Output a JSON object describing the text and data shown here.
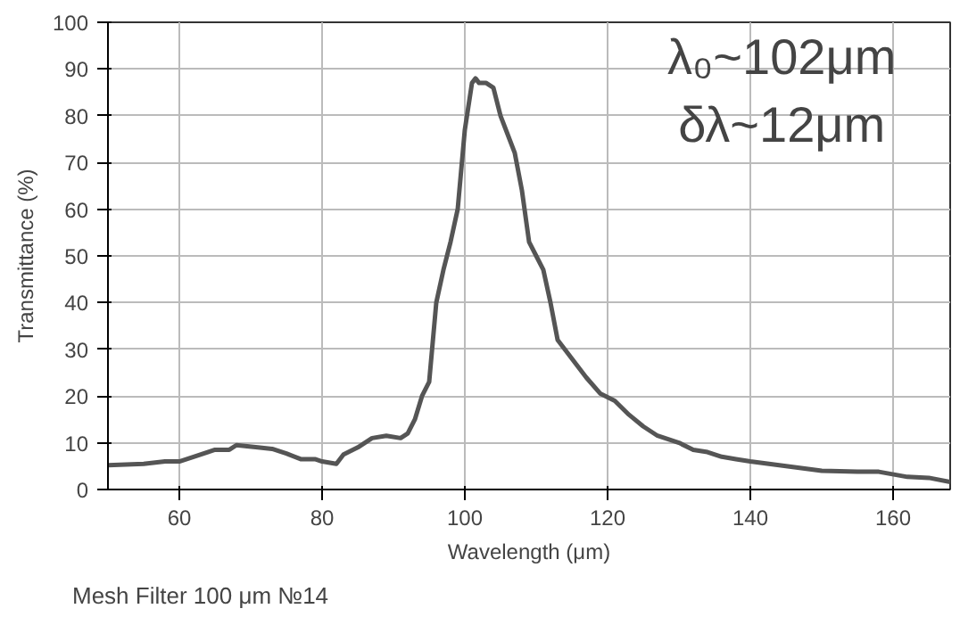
{
  "chart_data": {
    "type": "line",
    "xlabel": "Wavelength (μm)",
    "ylabel": "Transmittance (%)",
    "x": [
      50,
      55,
      58,
      60,
      62,
      65,
      67,
      68,
      71,
      73,
      75,
      77,
      79,
      80,
      82,
      83,
      85,
      87,
      89,
      91,
      92,
      93,
      94,
      95,
      96,
      97,
      98,
      99,
      100,
      101,
      101.5,
      102,
      103,
      104,
      105,
      106,
      107,
      108,
      109,
      110,
      111,
      112,
      113,
      115,
      117,
      119,
      121,
      123,
      125,
      127,
      130,
      132,
      134,
      136,
      138,
      140,
      145,
      150,
      155,
      158,
      162,
      165,
      168
    ],
    "series": [
      {
        "color": "#555555",
        "values": [
          5.2,
          5.5,
          6,
          6,
          7,
          8.5,
          8.5,
          9.5,
          9,
          8.7,
          7.7,
          6.5,
          6.5,
          6,
          5.5,
          7.5,
          9,
          11,
          11.5,
          11,
          12,
          15,
          20,
          23,
          40,
          47,
          53,
          60,
          77,
          87,
          88,
          87,
          87,
          86,
          80,
          76,
          72,
          64,
          53,
          50,
          47,
          40,
          32,
          28,
          24,
          20.5,
          19,
          16,
          13.5,
          11.5,
          10,
          8.5,
          8,
          7,
          6.5,
          6,
          5,
          4,
          3.8,
          3.8,
          2.7,
          2.5,
          1.6
        ]
      }
    ],
    "xlim": [
      50,
      168
    ],
    "xticks": [
      60,
      80,
      100,
      120,
      140,
      160
    ],
    "ylim": [
      0,
      100
    ],
    "yticks": [
      0,
      10,
      20,
      30,
      40,
      50,
      60,
      70,
      80,
      90,
      100
    ],
    "grid": true,
    "marker": "none",
    "line_style": "solid",
    "annotations": [
      {
        "text": "λ₀~102μm"
      },
      {
        "text": "δλ~12μm"
      },
      {
        "text": "Mesh Filter 100 μm №14"
      }
    ]
  }
}
